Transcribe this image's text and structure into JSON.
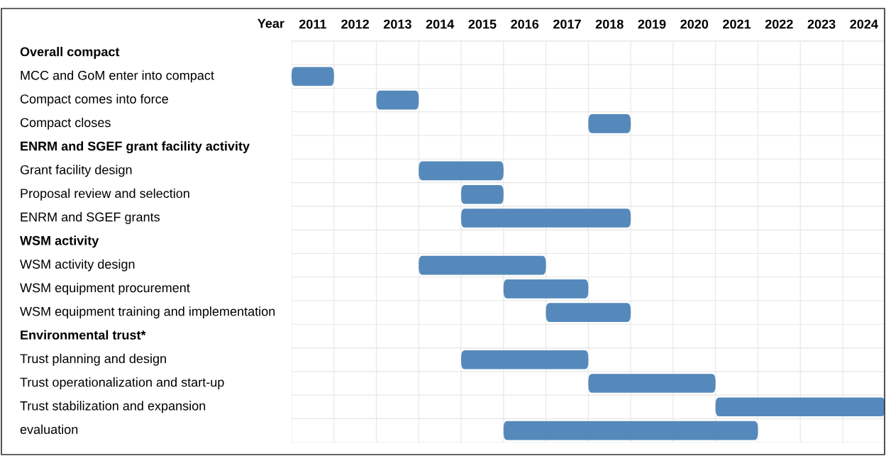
{
  "chart_data": {
    "type": "bar",
    "orientation": "horizontal",
    "xlabel": "Year",
    "categories": [
      "Overall compact",
      "MCC and GoM enter into compact",
      "Compact comes into force",
      "Compact closes",
      "ENRM and SGEF grant facility activity",
      "Grant facility design",
      "Proposal review and selection",
      "ENRM and SGEF grants",
      "WSM activity",
      "WSM activity design",
      "WSM equipment procurement",
      "WSM equipment training and implementation",
      "Environmental trust*",
      "Trust planning and design",
      "Trust operationalization and start-up",
      "Trust stabilization and expansion",
      "evaluation"
    ],
    "base": [
      null,
      2011,
      2013,
      2018,
      null,
      2014,
      2015,
      2015,
      null,
      2014,
      2016,
      2017,
      null,
      2015,
      2018,
      2021,
      2016
    ],
    "values": [
      null,
      1,
      1,
      1,
      null,
      2,
      1,
      4,
      null,
      3,
      2,
      2,
      null,
      3,
      3,
      4,
      6
    ],
    "color": "#5589bb",
    "xlim": [
      2011,
      2025
    ],
    "xticks": [
      {
        "value": 2011.5,
        "label": "2011"
      },
      {
        "value": 2012.5,
        "label": "2012"
      },
      {
        "value": 2013.5,
        "label": "2013"
      },
      {
        "value": 2014.5,
        "label": "2014"
      },
      {
        "value": 2015.5,
        "label": "2015"
      },
      {
        "value": 2016.5,
        "label": "2016"
      },
      {
        "value": 2017.5,
        "label": "2017"
      },
      {
        "value": 2018.5,
        "label": "2018"
      },
      {
        "value": 2019.5,
        "label": "2019"
      },
      {
        "value": 2020.5,
        "label": "2020"
      },
      {
        "value": 2021.5,
        "label": "2021"
      },
      {
        "value": 2022.5,
        "label": "2022"
      },
      {
        "value": 2023.5,
        "label": "2023"
      },
      {
        "value": 2024.5,
        "label": "2024"
      }
    ],
    "grid": true
  }
}
